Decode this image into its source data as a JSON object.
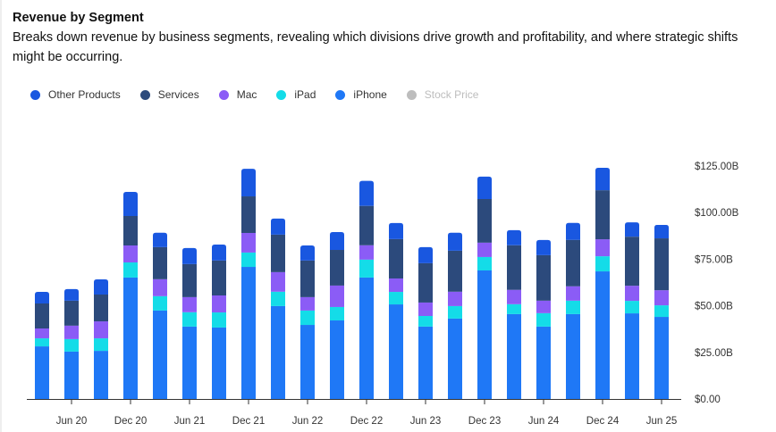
{
  "header": {
    "title": "Revenue by Segment",
    "subtitle": "Breaks down revenue by business segments, revealing which divisions drive growth and profitability, and where strategic shifts might be occurring."
  },
  "legend": [
    {
      "name": "Other Products",
      "color": "#1957e0",
      "active": true
    },
    {
      "name": "Services",
      "color": "#2c4a7c",
      "active": true
    },
    {
      "name": "Mac",
      "color": "#8b5cf6",
      "active": true
    },
    {
      "name": "iPad",
      "color": "#14dce8",
      "active": true
    },
    {
      "name": "iPhone",
      "color": "#1f78f6",
      "active": true
    },
    {
      "name": "Stock Price",
      "color": "#bdbdbd",
      "active": false
    }
  ],
  "chart_data": {
    "type": "bar",
    "stacked": true,
    "title": "Revenue by Segment",
    "xlabel": "",
    "ylabel": "",
    "ylim": [
      0,
      130
    ],
    "y_unit": "USD billions",
    "y_axis_position": "right",
    "y_ticks": [
      0,
      25,
      50,
      75,
      100,
      125
    ],
    "y_tick_labels": [
      "$0.00",
      "$25.00B",
      "$50.00B",
      "$75.00B",
      "$100.00B",
      "$125.00B"
    ],
    "grid": false,
    "legend_position": "top-left",
    "categories": [
      "Mar 20",
      "Jun 20",
      "Sep 20",
      "Dec 20",
      "Mar 21",
      "Jun 21",
      "Sep 21",
      "Dec 21",
      "Mar 22",
      "Jun 22",
      "Sep 22",
      "Dec 22",
      "Mar 23",
      "Jun 23",
      "Sep 23",
      "Dec 23",
      "Mar 24",
      "Jun 24",
      "Sep 24",
      "Dec 24",
      "Mar 25",
      "Jun 25"
    ],
    "x_tick_labels": [
      {
        "index": 1,
        "label": "Jun 20"
      },
      {
        "index": 3,
        "label": "Dec 20"
      },
      {
        "index": 5,
        "label": "Jun 21"
      },
      {
        "index": 7,
        "label": "Dec 21"
      },
      {
        "index": 9,
        "label": "Jun 22"
      },
      {
        "index": 11,
        "label": "Dec 22"
      },
      {
        "index": 13,
        "label": "Jun 23"
      },
      {
        "index": 15,
        "label": "Dec 23"
      },
      {
        "index": 17,
        "label": "Jun 24"
      },
      {
        "index": 19,
        "label": "Dec 24"
      },
      {
        "index": 21,
        "label": "Jun 25"
      }
    ],
    "series": [
      {
        "name": "iPhone",
        "color": "#1f78f6",
        "values": [
          28.2,
          25.4,
          25.8,
          65.1,
          47.4,
          38.8,
          38.3,
          70.8,
          49.8,
          39.7,
          42.1,
          65.1,
          50.7,
          38.8,
          43.1,
          68.9,
          45.5,
          38.8,
          45.5,
          68.4,
          45.9,
          44.0
        ]
      },
      {
        "name": "iPad",
        "color": "#14dce8",
        "values": [
          4.3,
          6.7,
          6.7,
          8.1,
          7.7,
          7.7,
          8.1,
          7.7,
          7.7,
          7.7,
          7.2,
          9.6,
          6.7,
          5.7,
          6.7,
          7.2,
          5.3,
          7.2,
          7.2,
          8.1,
          6.7,
          6.2
        ]
      },
      {
        "name": "Mac",
        "color": "#8b5cf6",
        "values": [
          5.3,
          7.2,
          9.1,
          9.1,
          9.1,
          8.1,
          9.1,
          10.5,
          10.5,
          7.2,
          11.5,
          7.7,
          7.2,
          7.2,
          7.7,
          7.7,
          7.7,
          6.7,
          7.7,
          9.1,
          8.1,
          8.1
        ]
      },
      {
        "name": "Services",
        "color": "#2c4a7c",
        "values": [
          13.4,
          13.4,
          14.4,
          15.8,
          17.2,
          17.7,
          18.7,
          19.6,
          20.1,
          19.6,
          19.1,
          21.1,
          21.1,
          21.1,
          22.0,
          23.4,
          23.9,
          24.4,
          24.9,
          26.3,
          26.3,
          27.8
        ]
      },
      {
        "name": "Other Products",
        "color": "#1957e0",
        "values": [
          6.2,
          6.2,
          8.1,
          12.9,
          7.7,
          8.6,
          8.6,
          14.8,
          8.6,
          8.1,
          9.6,
          13.4,
          8.6,
          8.6,
          9.6,
          12.0,
          8.1,
          8.1,
          9.1,
          12.0,
          7.7,
          7.2
        ]
      }
    ]
  }
}
